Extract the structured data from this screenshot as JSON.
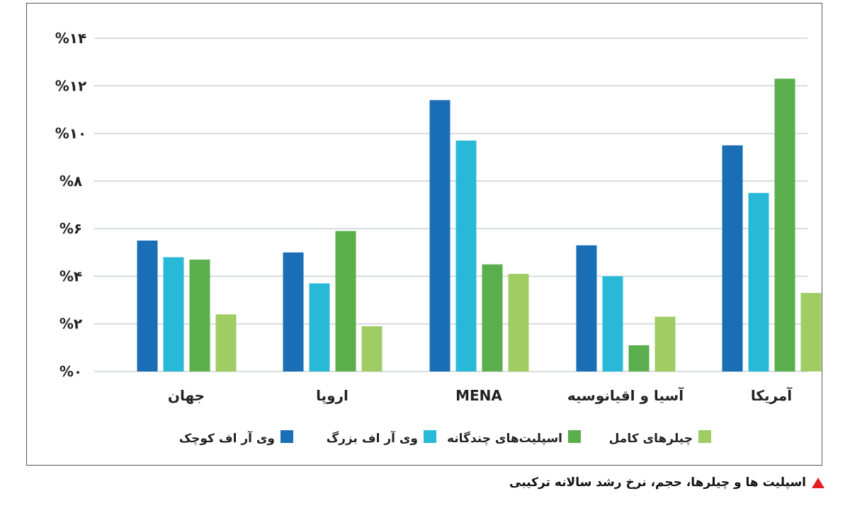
{
  "chart_data": {
    "type": "bar",
    "categories": [
      "جهان",
      "اروپا",
      "MENA",
      "آسیا و اقیانوسیه",
      "آمریکا"
    ],
    "series": [
      {
        "name": "وی آر اف کوچک",
        "color": "#1a6eb5",
        "values": [
          5.5,
          5.0,
          11.4,
          5.3,
          9.5
        ]
      },
      {
        "name": "وی آر اف بزرگ",
        "color": "#28b9d9",
        "values": [
          4.8,
          3.7,
          9.7,
          4.0,
          7.5
        ]
      },
      {
        "name": "اسپلیت‌های چندگانه",
        "color": "#5aae4c",
        "values": [
          4.7,
          5.9,
          4.5,
          1.1,
          12.3
        ]
      },
      {
        "name": "چیلرهای کامل",
        "color": "#9fcd63",
        "values": [
          2.4,
          1.9,
          4.1,
          2.3,
          3.3
        ]
      }
    ],
    "ylim": [
      0,
      14
    ],
    "yticks": [
      {
        "value": 0,
        "label": "%۰"
      },
      {
        "value": 2,
        "label": "%۲"
      },
      {
        "value": 4,
        "label": "%۴"
      },
      {
        "value": 6,
        "label": "%۶"
      },
      {
        "value": 8,
        "label": "%۸"
      },
      {
        "value": 10,
        "label": "%۱۰"
      },
      {
        "value": 12,
        "label": "%۱۲"
      },
      {
        "value": 14,
        "label": "%۱۴"
      }
    ],
    "grid": true,
    "legend_position": "bottom"
  },
  "caption": "اسپلیت ها و چیلرها، حجم، نرخ رشد سالانه ترکیبی",
  "colors": {
    "caption_marker": "#e0201f",
    "grid": "#cfd2d6"
  }
}
